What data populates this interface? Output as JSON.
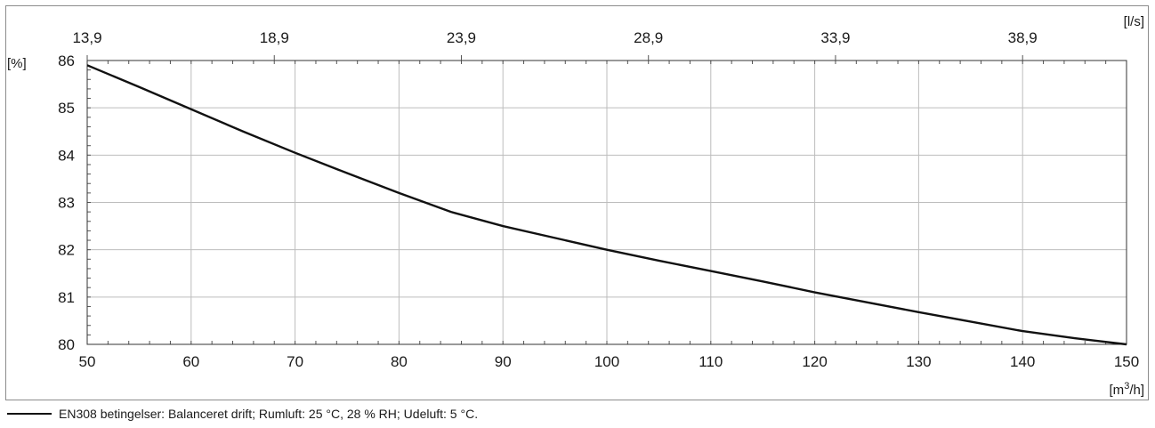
{
  "chart_data": {
    "type": "line",
    "x_unit_label": "[m³/h]",
    "x_unit_base": "[m",
    "x_unit_sup": "3",
    "x_unit_tail": "/h]",
    "y_unit_label": "[%]",
    "x2_unit_label": "[l/s]",
    "xlim": [
      50,
      150
    ],
    "ylim": [
      80,
      86
    ],
    "x_ticks": [
      50,
      60,
      70,
      80,
      90,
      100,
      110,
      120,
      130,
      140,
      150
    ],
    "y_ticks": [
      80,
      81,
      82,
      83,
      84,
      85,
      86
    ],
    "x2_ticks": [
      {
        "at_x": 50,
        "label": "13,9"
      },
      {
        "at_x": 68,
        "label": "18,9"
      },
      {
        "at_x": 86,
        "label": "23,9"
      },
      {
        "at_x": 104,
        "label": "28,9"
      },
      {
        "at_x": 122,
        "label": "33,9"
      },
      {
        "at_x": 140,
        "label": "38,9"
      }
    ],
    "grid": true,
    "legend_position": "bottom-left",
    "colors": {
      "line": "#111111",
      "grid": "#bdbdbd",
      "frame": "#333333",
      "outer_border": "#8c8c8c"
    },
    "series": [
      {
        "name": "EN308 betingelser: Balanceret drift; Rumluft: 25 °C, 28 % RH; Udeluft: 5 °C.",
        "x": [
          50,
          55,
          60,
          65,
          70,
          75,
          80,
          85,
          90,
          95,
          100,
          105,
          110,
          115,
          120,
          125,
          130,
          135,
          140,
          145,
          150
        ],
        "y": [
          85.9,
          85.44,
          84.97,
          84.5,
          84.05,
          83.62,
          83.2,
          82.8,
          82.5,
          82.25,
          82.0,
          81.77,
          81.55,
          81.33,
          81.1,
          80.89,
          80.68,
          80.48,
          80.28,
          80.13,
          80.0
        ]
      }
    ]
  }
}
